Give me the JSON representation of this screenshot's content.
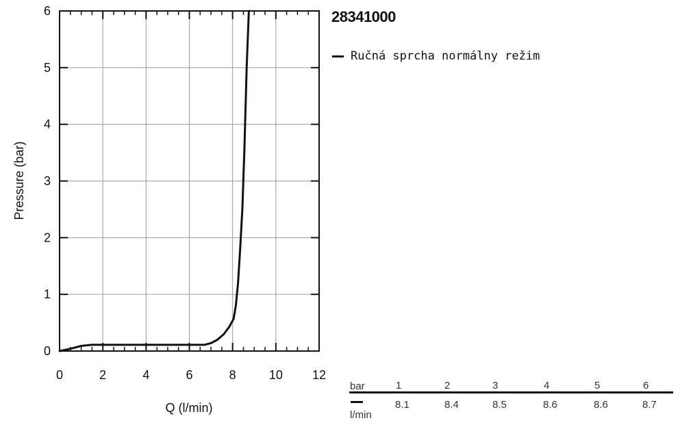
{
  "chart_data": {
    "type": "line",
    "title": "28341000",
    "xlabel": "Q (l/min)",
    "ylabel": "Pressure (bar)",
    "xlim": [
      0,
      12
    ],
    "ylim": [
      0,
      6
    ],
    "xticks": [
      "0",
      "2",
      "4",
      "6",
      "8",
      "10",
      "12"
    ],
    "yticks": [
      "0",
      "1",
      "2",
      "3",
      "4",
      "5",
      "6"
    ],
    "grid": true,
    "legend_position": "right",
    "series": [
      {
        "name": "Ručná sprcha normálny režim",
        "color": "#111111",
        "points": [
          [
            0.0,
            0.0
          ],
          [
            0.5,
            0.04
          ],
          [
            1.0,
            0.09
          ],
          [
            1.5,
            0.11
          ],
          [
            2.0,
            0.11
          ],
          [
            3.0,
            0.11
          ],
          [
            4.0,
            0.11
          ],
          [
            5.0,
            0.11
          ],
          [
            6.0,
            0.11
          ],
          [
            6.7,
            0.11
          ],
          [
            7.0,
            0.14
          ],
          [
            7.3,
            0.2
          ],
          [
            7.6,
            0.3
          ],
          [
            7.85,
            0.43
          ],
          [
            8.05,
            0.57
          ],
          [
            8.15,
            0.8
          ],
          [
            8.25,
            1.2
          ],
          [
            8.35,
            1.8
          ],
          [
            8.45,
            2.5
          ],
          [
            8.55,
            3.6
          ],
          [
            8.65,
            5.0
          ],
          [
            8.75,
            6.0
          ]
        ]
      }
    ]
  },
  "pressure_table": {
    "row1_unit": "bar",
    "row2_unit": "l/min",
    "pressures": [
      "1",
      "2",
      "3",
      "4",
      "5",
      "6"
    ],
    "flows": [
      "8.1",
      "8.4",
      "8.5",
      "8.6",
      "8.6",
      "8.7"
    ]
  }
}
